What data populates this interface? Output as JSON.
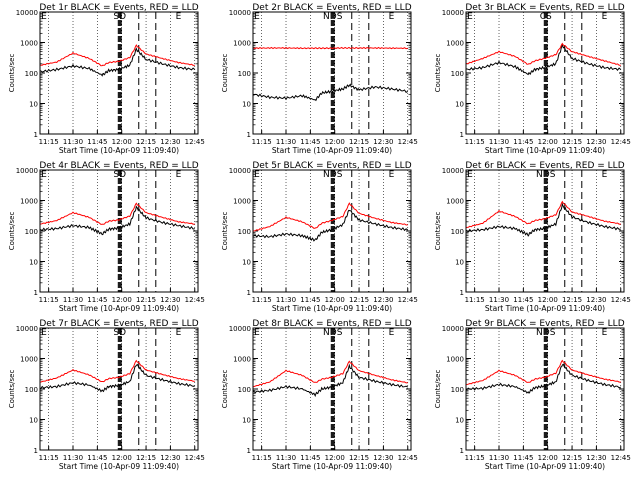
{
  "common": {
    "start_time_label": "Start Time (10-Apr-09 11:09:40)",
    "ylabel": "Counts/sec",
    "x_ticks": [
      "11:15",
      "11:30",
      "11:45",
      "12:00",
      "12:15",
      "12:30",
      "12:45"
    ],
    "y_ticks": [
      "1",
      "10",
      "100",
      "1000",
      "10000"
    ],
    "ylim": [
      1,
      10000
    ],
    "yscale": "log",
    "corner_markers": [
      "E",
      "E"
    ],
    "colors": {
      "events": "#000000",
      "lld": "#ff0000"
    }
  },
  "chart_data": [
    {
      "type": "line",
      "title": "Det 1r BLACK = Events, RED = LLD",
      "marker_label": "SD",
      "series": [
        {
          "name": "Events",
          "color": "#000000",
          "x": [
            "11:10",
            "11:20",
            "11:30",
            "11:40",
            "11:48",
            "11:52",
            "11:58",
            "12:05",
            "12:09",
            "12:15",
            "12:25",
            "12:35",
            "12:45"
          ],
          "values": [
            110,
            130,
            170,
            140,
            85,
            120,
            130,
            180,
            600,
            280,
            200,
            150,
            130
          ]
        },
        {
          "name": "LLD",
          "color": "#ff0000",
          "x": [
            "11:10",
            "11:20",
            "11:30",
            "11:40",
            "11:48",
            "11:52",
            "11:58",
            "12:05",
            "12:09",
            "12:15",
            "12:25",
            "12:35",
            "12:45"
          ],
          "values": [
            180,
            230,
            450,
            300,
            170,
            220,
            240,
            320,
            800,
            420,
            300,
            220,
            180
          ]
        }
      ]
    },
    {
      "type": "line",
      "title": "Det 2r BLACK = Events, RED = LLD",
      "marker_label": "NDS",
      "series": [
        {
          "name": "Events",
          "color": "#000000",
          "x": [
            "11:10",
            "11:20",
            "11:30",
            "11:40",
            "11:48",
            "11:52",
            "11:58",
            "12:05",
            "12:09",
            "12:15",
            "12:25",
            "12:35",
            "12:45"
          ],
          "values": [
            20,
            16,
            15,
            18,
            13,
            22,
            25,
            30,
            40,
            28,
            35,
            30,
            25
          ]
        },
        {
          "name": "LLD",
          "color": "#ff0000",
          "x": [
            "11:10",
            "11:20",
            "11:30",
            "11:40",
            "11:48",
            "11:52",
            "11:58",
            "12:05",
            "12:09",
            "12:15",
            "12:25",
            "12:35",
            "12:45"
          ],
          "values": [
            650,
            660,
            660,
            650,
            650,
            650,
            650,
            660,
            660,
            660,
            660,
            650,
            650
          ]
        }
      ]
    },
    {
      "type": "line",
      "title": "Det 3r BLACK = Events, RED = LLD",
      "marker_label": "CS",
      "series": [
        {
          "name": "Events",
          "color": "#000000",
          "x": [
            "11:10",
            "11:20",
            "11:30",
            "11:40",
            "11:48",
            "11:52",
            "11:58",
            "12:05",
            "12:09",
            "12:15",
            "12:25",
            "12:35",
            "12:45"
          ],
          "values": [
            130,
            150,
            220,
            160,
            90,
            130,
            150,
            200,
            800,
            300,
            200,
            150,
            130
          ]
        },
        {
          "name": "LLD",
          "color": "#ff0000",
          "x": [
            "11:10",
            "11:20",
            "11:30",
            "11:40",
            "11:48",
            "11:52",
            "11:58",
            "12:05",
            "12:09",
            "12:15",
            "12:25",
            "12:35",
            "12:45"
          ],
          "values": [
            200,
            300,
            500,
            350,
            190,
            250,
            300,
            400,
            900,
            500,
            350,
            250,
            180
          ]
        }
      ]
    },
    {
      "type": "line",
      "title": "Det 4r BLACK = Events, RED = LLD",
      "marker_label": "SD",
      "series": [
        {
          "name": "Events",
          "color": "#000000",
          "x": [
            "11:10",
            "11:20",
            "11:30",
            "11:40",
            "11:48",
            "11:52",
            "11:58",
            "12:05",
            "12:09",
            "12:15",
            "12:25",
            "12:35",
            "12:45"
          ],
          "values": [
            110,
            120,
            150,
            130,
            80,
            115,
            125,
            170,
            600,
            270,
            190,
            150,
            120
          ]
        },
        {
          "name": "LLD",
          "color": "#ff0000",
          "x": [
            "11:10",
            "11:20",
            "11:30",
            "11:40",
            "11:48",
            "11:52",
            "11:58",
            "12:05",
            "12:09",
            "12:15",
            "12:25",
            "12:35",
            "12:45"
          ],
          "values": [
            170,
            220,
            400,
            280,
            160,
            210,
            230,
            310,
            800,
            400,
            280,
            200,
            170
          ]
        }
      ]
    },
    {
      "type": "line",
      "title": "Det 5r BLACK = Events, RED = LLD",
      "marker_label": "NDS",
      "series": [
        {
          "name": "Events",
          "color": "#000000",
          "x": [
            "11:10",
            "11:20",
            "11:30",
            "11:40",
            "11:48",
            "11:52",
            "11:58",
            "12:05",
            "12:09",
            "12:15",
            "12:25",
            "12:35",
            "12:45"
          ],
          "values": [
            70,
            65,
            80,
            70,
            50,
            90,
            110,
            160,
            500,
            230,
            170,
            130,
            110
          ]
        },
        {
          "name": "LLD",
          "color": "#ff0000",
          "x": [
            "11:10",
            "11:20",
            "11:30",
            "11:40",
            "11:48",
            "11:52",
            "11:58",
            "12:05",
            "12:09",
            "12:15",
            "12:25",
            "12:35",
            "12:45"
          ],
          "values": [
            100,
            140,
            280,
            200,
            120,
            180,
            220,
            300,
            800,
            380,
            260,
            190,
            160
          ]
        }
      ]
    },
    {
      "type": "line",
      "title": "Det 6r BLACK = Events, RED = LLD",
      "marker_label": "NDS",
      "series": [
        {
          "name": "Events",
          "color": "#000000",
          "x": [
            "11:10",
            "11:20",
            "11:30",
            "11:40",
            "11:48",
            "11:52",
            "11:58",
            "12:05",
            "12:09",
            "12:15",
            "12:25",
            "12:35",
            "12:45"
          ],
          "values": [
            100,
            110,
            140,
            120,
            75,
            110,
            120,
            170,
            700,
            290,
            190,
            140,
            115
          ]
        },
        {
          "name": "LLD",
          "color": "#ff0000",
          "x": [
            "11:10",
            "11:20",
            "11:30",
            "11:40",
            "11:48",
            "11:52",
            "11:58",
            "12:05",
            "12:09",
            "12:15",
            "12:25",
            "12:35",
            "12:45"
          ],
          "values": [
            130,
            180,
            450,
            300,
            170,
            220,
            250,
            340,
            900,
            420,
            300,
            210,
            170
          ]
        }
      ]
    },
    {
      "type": "line",
      "title": "Det 7r BLACK = Events, RED = LLD",
      "marker_label": "SD",
      "series": [
        {
          "name": "Events",
          "color": "#000000",
          "x": [
            "11:10",
            "11:20",
            "11:30",
            "11:40",
            "11:48",
            "11:52",
            "11:58",
            "12:05",
            "12:09",
            "12:15",
            "12:25",
            "12:35",
            "12:45"
          ],
          "values": [
            110,
            120,
            160,
            135,
            85,
            120,
            130,
            175,
            650,
            280,
            200,
            150,
            125
          ]
        },
        {
          "name": "LLD",
          "color": "#ff0000",
          "x": [
            "11:10",
            "11:20",
            "11:30",
            "11:40",
            "11:48",
            "11:52",
            "11:58",
            "12:05",
            "12:09",
            "12:15",
            "12:25",
            "12:35",
            "12:45"
          ],
          "values": [
            170,
            230,
            420,
            290,
            170,
            220,
            240,
            320,
            850,
            420,
            300,
            220,
            180
          ]
        }
      ]
    },
    {
      "type": "line",
      "title": "Det 8r BLACK = Events, RED = LLD",
      "marker_label": "NDS",
      "series": [
        {
          "name": "Events",
          "color": "#000000",
          "x": [
            "11:10",
            "11:20",
            "11:30",
            "11:40",
            "11:48",
            "11:52",
            "11:58",
            "12:05",
            "12:09",
            "12:15",
            "12:25",
            "12:35",
            "12:45"
          ],
          "values": [
            80,
            90,
            120,
            100,
            65,
            100,
            115,
            160,
            550,
            240,
            180,
            140,
            115
          ]
        },
        {
          "name": "LLD",
          "color": "#ff0000",
          "x": [
            "11:10",
            "11:20",
            "11:30",
            "11:40",
            "11:48",
            "11:52",
            "11:58",
            "12:05",
            "12:09",
            "12:15",
            "12:25",
            "12:35",
            "12:45"
          ],
          "values": [
            120,
            170,
            400,
            280,
            160,
            210,
            240,
            320,
            800,
            400,
            280,
            200,
            160
          ]
        }
      ]
    },
    {
      "type": "line",
      "title": "Det 9r BLACK = Events, RED = LLD",
      "marker_label": "NDS",
      "series": [
        {
          "name": "Events",
          "color": "#000000",
          "x": [
            "11:10",
            "11:20",
            "11:30",
            "11:40",
            "11:48",
            "11:52",
            "11:58",
            "12:05",
            "12:09",
            "12:15",
            "12:25",
            "12:35",
            "12:45"
          ],
          "values": [
            100,
            105,
            140,
            120,
            75,
            110,
            125,
            170,
            650,
            280,
            190,
            140,
            115
          ]
        },
        {
          "name": "LLD",
          "color": "#ff0000",
          "x": [
            "11:10",
            "11:20",
            "11:30",
            "11:40",
            "11:48",
            "11:52",
            "11:58",
            "12:05",
            "12:09",
            "12:15",
            "12:25",
            "12:35",
            "12:45"
          ],
          "values": [
            140,
            190,
            400,
            280,
            160,
            210,
            240,
            330,
            850,
            420,
            290,
            210,
            170
          ]
        }
      ]
    }
  ]
}
